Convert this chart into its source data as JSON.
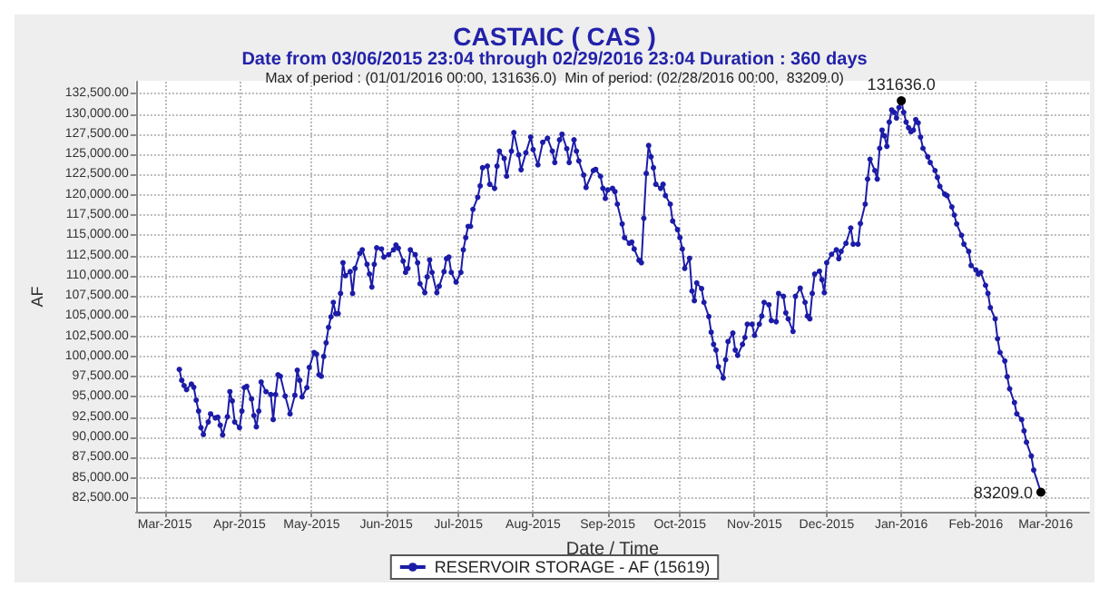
{
  "chart_data": {
    "type": "line",
    "title": "CASTAIC ( CAS )",
    "subtitle": "Date from 03/06/2015 23:04 through 02/29/2016 23:04 Duration : 360 days",
    "xlabel": "Date / Time",
    "ylabel": "AF",
    "annotations": [
      "Max of period : (01/01/2016 00:00, 131636.0)  Min of period: (02/28/2016 00:00,  83209.0)",
      {
        "text": "131636.0",
        "x": "2016-01-01",
        "y": 131636
      },
      {
        "text": "83209.0",
        "x": "2016-02-28",
        "y": 83209
      }
    ],
    "x": [
      "2015-03-07",
      "2015-03-08",
      "2015-03-09",
      "2015-03-10",
      "2015-03-12",
      "2015-03-13",
      "2015-03-14",
      "2015-03-15",
      "2015-03-16",
      "2015-03-17",
      "2015-03-19",
      "2015-03-20",
      "2015-03-22",
      "2015-03-23",
      "2015-03-24",
      "2015-03-25",
      "2015-03-27",
      "2015-03-28",
      "2015-03-29",
      "2015-03-30",
      "2015-04-01",
      "2015-04-02",
      "2015-04-03",
      "2015-04-04",
      "2015-04-06",
      "2015-04-07",
      "2015-04-08",
      "2015-04-09",
      "2015-04-10",
      "2015-04-12",
      "2015-04-14",
      "2015-04-15",
      "2015-04-16",
      "2015-04-17",
      "2015-04-18",
      "2015-04-20",
      "2015-04-22",
      "2015-04-24",
      "2015-04-25",
      "2015-04-26",
      "2015-04-27",
      "2015-04-29",
      "2015-04-30",
      "2015-05-02",
      "2015-05-03",
      "2015-05-04",
      "2015-05-05",
      "2015-05-06",
      "2015-05-07",
      "2015-05-08",
      "2015-05-09",
      "2015-05-10",
      "2015-05-11",
      "2015-05-12",
      "2015-05-13",
      "2015-05-14",
      "2015-05-15",
      "2015-05-17",
      "2015-05-18",
      "2015-05-19",
      "2015-05-21",
      "2015-05-22",
      "2015-05-24",
      "2015-05-25",
      "2015-05-26",
      "2015-05-27",
      "2015-05-28",
      "2015-05-30",
      "2015-05-31",
      "2015-06-02",
      "2015-06-04",
      "2015-06-05",
      "2015-06-06",
      "2015-06-08",
      "2015-06-09",
      "2015-06-10",
      "2015-06-11",
      "2015-06-13",
      "2015-06-14",
      "2015-06-15",
      "2015-06-17",
      "2015-06-18",
      "2015-06-19",
      "2015-06-20",
      "2015-06-22",
      "2015-06-23",
      "2015-06-25",
      "2015-06-26",
      "2015-06-27",
      "2015-06-28",
      "2015-06-30",
      "2015-07-02",
      "2015-07-03",
      "2015-07-04",
      "2015-07-05",
      "2015-07-06",
      "2015-07-07",
      "2015-07-09",
      "2015-07-10",
      "2015-07-11",
      "2015-07-13",
      "2015-07-14",
      "2015-07-16",
      "2015-07-17",
      "2015-07-18",
      "2015-07-20",
      "2015-07-21",
      "2015-07-23",
      "2015-07-24",
      "2015-07-26",
      "2015-07-27",
      "2015-07-29",
      "2015-07-31",
      "2015-08-01",
      "2015-08-03",
      "2015-08-05",
      "2015-08-07",
      "2015-08-09",
      "2015-08-10",
      "2015-08-12",
      "2015-08-13",
      "2015-08-15",
      "2015-08-16",
      "2015-08-18",
      "2015-08-19",
      "2015-08-20",
      "2015-08-22",
      "2015-08-23",
      "2015-08-26",
      "2015-08-27",
      "2015-08-29",
      "2015-08-30",
      "2015-08-31",
      "2015-09-01",
      "2015-09-03",
      "2015-09-04",
      "2015-09-05",
      "2015-09-07",
      "2015-09-08",
      "2015-09-10",
      "2015-09-11",
      "2015-09-12",
      "2015-09-14",
      "2015-09-15",
      "2015-09-16",
      "2015-09-17",
      "2015-09-18",
      "2015-09-19",
      "2015-09-20",
      "2015-09-21",
      "2015-09-23",
      "2015-09-24",
      "2015-09-25",
      "2015-09-27",
      "2015-09-28",
      "2015-09-30",
      "2015-10-01",
      "2015-10-02",
      "2015-10-03",
      "2015-10-05",
      "2015-10-06",
      "2015-10-07",
      "2015-10-08",
      "2015-10-10",
      "2015-10-11",
      "2015-10-13",
      "2015-10-14",
      "2015-10-15",
      "2015-10-16",
      "2015-10-17",
      "2015-10-19",
      "2015-10-20",
      "2015-10-21",
      "2015-10-23",
      "2015-10-24",
      "2015-10-25",
      "2015-10-27",
      "2015-10-28",
      "2015-10-29",
      "2015-10-31",
      "2015-11-01",
      "2015-11-03",
      "2015-11-04",
      "2015-11-05",
      "2015-11-07",
      "2015-11-08",
      "2015-11-10",
      "2015-11-11",
      "2015-11-13",
      "2015-11-14",
      "2015-11-15",
      "2015-11-17",
      "2015-11-18",
      "2015-11-20",
      "2015-11-22",
      "2015-11-23",
      "2015-11-24",
      "2015-11-25",
      "2015-11-26",
      "2015-11-28",
      "2015-11-29",
      "2015-11-30",
      "2015-12-01",
      "2015-12-03",
      "2015-12-05",
      "2015-12-06",
      "2015-12-07",
      "2015-12-09",
      "2015-12-11",
      "2015-12-12",
      "2015-12-14",
      "2015-12-15",
      "2015-12-17",
      "2015-12-18",
      "2015-12-19",
      "2015-12-21",
      "2015-12-22",
      "2015-12-23",
      "2015-12-24",
      "2015-12-25",
      "2015-12-26",
      "2015-12-27",
      "2015-12-28",
      "2015-12-29",
      "2015-12-30",
      "2015-12-31",
      "2016-01-01",
      "2016-01-02",
      "2016-01-03",
      "2016-01-04",
      "2016-01-05",
      "2016-01-06",
      "2016-01-07",
      "2016-01-08",
      "2016-01-09",
      "2016-01-10",
      "2016-01-12",
      "2016-01-13",
      "2016-01-15",
      "2016-01-16",
      "2016-01-17",
      "2016-01-19",
      "2016-01-20",
      "2016-01-22",
      "2016-01-23",
      "2016-01-24",
      "2016-01-26",
      "2016-01-27",
      "2016-01-29",
      "2016-01-30",
      "2016-02-01",
      "2016-02-02",
      "2016-02-03",
      "2016-02-05",
      "2016-02-06",
      "2016-02-07",
      "2016-02-09",
      "2016-02-10",
      "2016-02-11",
      "2016-02-13",
      "2016-02-14",
      "2016-02-15",
      "2016-02-17",
      "2016-02-18",
      "2016-02-20",
      "2016-02-21",
      "2016-02-22",
      "2016-02-24",
      "2016-02-25",
      "2016-02-28"
    ],
    "series": [
      {
        "name": "RESERVOIR STORAGE - AF (15619)",
        "color": "#1c1ca8",
        "values": [
          98400,
          97050,
          96400,
          95900,
          96600,
          96200,
          94600,
          93250,
          91200,
          90350,
          91900,
          92900,
          92400,
          92500,
          91500,
          90300,
          92550,
          95650,
          94500,
          91900,
          91200,
          93250,
          96150,
          96300,
          94750,
          92700,
          91300,
          93250,
          96850,
          95650,
          95300,
          92200,
          95300,
          97750,
          97550,
          95100,
          92900,
          95200,
          98300,
          97050,
          95000,
          96150,
          98650,
          100500,
          100300,
          97750,
          97550,
          100000,
          101700,
          103600,
          104900,
          106700,
          105300,
          105300,
          107800,
          111600,
          110000,
          110500,
          107800,
          110900,
          112750,
          113200,
          111400,
          110200,
          108600,
          111400,
          113450,
          113300,
          112300,
          112600,
          113200,
          113800,
          113400,
          111800,
          110400,
          110900,
          113200,
          112600,
          111600,
          109000,
          107900,
          109850,
          111950,
          110400,
          107900,
          108700,
          110500,
          112100,
          112300,
          110400,
          109200,
          110400,
          113200,
          114700,
          116100,
          116100,
          118200,
          119700,
          121100,
          123350,
          123550,
          121300,
          120800,
          123550,
          125400,
          124500,
          122300,
          125400,
          127700,
          124950,
          123100,
          125200,
          127150,
          125600,
          123700,
          126500,
          127000,
          125400,
          124000,
          126800,
          127500,
          125700,
          124000,
          126800,
          125400,
          124200,
          122450,
          120900,
          123000,
          123150,
          122300,
          120800,
          119550,
          120600,
          120800,
          120400,
          118850,
          116400,
          114700,
          114000,
          114150,
          113300,
          111900,
          111600,
          117100,
          122650,
          126100,
          124700,
          123350,
          121300,
          120800,
          121300,
          119900,
          118850,
          116750,
          115700,
          114700,
          113300,
          110900,
          112150,
          108100,
          106900,
          109100,
          108400,
          106700,
          104950,
          103000,
          101500,
          100800,
          98750,
          97350,
          99600,
          101850,
          102900,
          100800,
          100150,
          101500,
          102350,
          104000,
          104000,
          102600,
          104000,
          105000,
          106700,
          106400,
          104450,
          104300,
          107800,
          107450,
          105400,
          104650,
          103100,
          107450,
          108450,
          106700,
          105000,
          104650,
          107800,
          110200,
          110550,
          109500,
          107900,
          111600,
          112650,
          113200,
          112100,
          113000,
          114000,
          115900,
          113900,
          113900,
          116450,
          118850,
          121950,
          124400,
          123000,
          121950,
          125750,
          128000,
          127300,
          126000,
          129000,
          130500,
          130200,
          129500,
          130800,
          131636,
          130200,
          129000,
          128300,
          127800,
          128000,
          129300,
          128900,
          127150,
          125750,
          124700,
          124000,
          123000,
          122150,
          121050,
          120100,
          119900,
          118500,
          117500,
          116400,
          115000,
          113900,
          113000,
          111250,
          110700,
          110200,
          110400,
          108800,
          107800,
          106050,
          104650,
          102200,
          100500,
          99450,
          97500,
          96000,
          94300,
          92900,
          92200,
          90800,
          89400,
          87700,
          85950,
          83209
        ]
      }
    ],
    "xlim": [
      "2015-02-17",
      "2016-03-19"
    ],
    "xticks": [
      {
        "value": "2015-03-01",
        "label": "Mar-2015"
      },
      {
        "value": "2015-04-01",
        "label": "Apr-2015"
      },
      {
        "value": "2015-05-01",
        "label": "May-2015"
      },
      {
        "value": "2015-06-01",
        "label": "Jun-2015"
      },
      {
        "value": "2015-07-01",
        "label": "Jul-2015"
      },
      {
        "value": "2015-08-01",
        "label": "Aug-2015"
      },
      {
        "value": "2015-09-01",
        "label": "Sep-2015"
      },
      {
        "value": "2015-10-01",
        "label": "Oct-2015"
      },
      {
        "value": "2015-11-01",
        "label": "Nov-2015"
      },
      {
        "value": "2015-12-01",
        "label": "Dec-2015"
      },
      {
        "value": "2016-01-01",
        "label": "Jan-2016"
      },
      {
        "value": "2016-02-01",
        "label": "Feb-2016"
      },
      {
        "value": "2016-03-01",
        "label": "Mar-2016"
      }
    ],
    "ylim": [
      80800,
      134000
    ],
    "yticks": [
      {
        "value": 82500,
        "label": "82,500.00"
      },
      {
        "value": 85000,
        "label": "85,000.00"
      },
      {
        "value": 87500,
        "label": "87,500.00"
      },
      {
        "value": 90000,
        "label": "90,000.00"
      },
      {
        "value": 92500,
        "label": "92,500.00"
      },
      {
        "value": 95000,
        "label": "95,000.00"
      },
      {
        "value": 97500,
        "label": "97,500.00"
      },
      {
        "value": 100000,
        "label": "100,000.00"
      },
      {
        "value": 102500,
        "label": "102,500.00"
      },
      {
        "value": 105000,
        "label": "105,000.00"
      },
      {
        "value": 107500,
        "label": "107,500.00"
      },
      {
        "value": 110000,
        "label": "110,000.00"
      },
      {
        "value": 112500,
        "label": "112,500.00"
      },
      {
        "value": 115000,
        "label": "115,000.00"
      },
      {
        "value": 117500,
        "label": "117,500.00"
      },
      {
        "value": 120000,
        "label": "120,000.00"
      },
      {
        "value": 122500,
        "label": "122,500.00"
      },
      {
        "value": 125000,
        "label": "125,000.00"
      },
      {
        "value": 127500,
        "label": "127,500.00"
      },
      {
        "value": 130000,
        "label": "130,000.00"
      },
      {
        "value": 132500,
        "label": "132,500.00"
      }
    ],
    "grid": true,
    "legend": "bottom",
    "marker": "circle",
    "line_style": "solid"
  }
}
